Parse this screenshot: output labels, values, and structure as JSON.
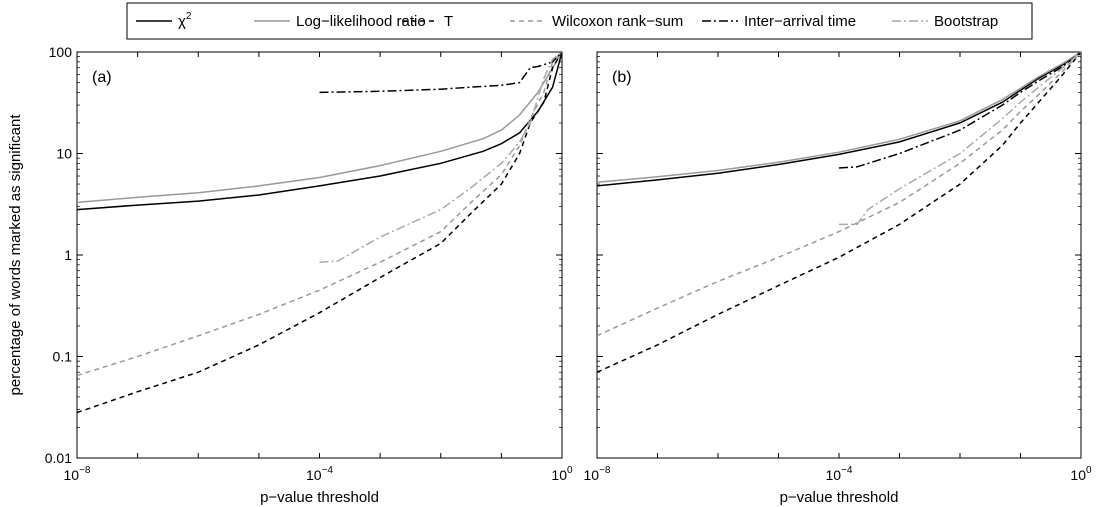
{
  "chart_data": {
    "type": "line",
    "scale": {
      "x": "log",
      "y": "log"
    },
    "legend": {
      "placement": "top-center",
      "entries": [
        {
          "key": "chi2",
          "label_base": "χ",
          "label_sup": "2"
        },
        {
          "key": "llr",
          "label": "Log−likelihood ratio"
        },
        {
          "key": "t",
          "label": "T"
        },
        {
          "key": "wilcoxon",
          "label": "Wilcoxon rank−sum"
        },
        {
          "key": "iat",
          "label": "Inter−arrival time"
        },
        {
          "key": "bootstrap",
          "label": "Bootstrap"
        }
      ]
    },
    "style": {
      "chi2": {
        "color": "#000000",
        "dash": ""
      },
      "llr": {
        "color": "#999999",
        "dash": ""
      },
      "t": {
        "color": "#000000",
        "dash": "5,4"
      },
      "wilcoxon": {
        "color": "#999999",
        "dash": "5,4"
      },
      "iat": {
        "color": "#000000",
        "dash": "9,3,2,3"
      },
      "bootstrap": {
        "color": "#aaaaaa",
        "dash": "9,3,2,3"
      }
    },
    "panels": [
      {
        "label": "(a)",
        "xlabel": "p−value threshold",
        "ylabel": "percentage of words marked as significant",
        "xlim": [
          1e-08,
          1
        ],
        "ylim": [
          0.01,
          100
        ],
        "series": [
          {
            "key": "chi2",
            "x": [
              1e-08,
              1e-07,
              1e-06,
              1e-05,
              0.0001,
              0.001,
              0.01,
              0.05,
              0.1,
              0.2,
              0.4,
              0.7,
              1
            ],
            "y": [
              2.8,
              3.1,
              3.4,
              3.9,
              4.8,
              6.0,
              8.0,
              10.5,
              12.5,
              16,
              26,
              45,
              100
            ]
          },
          {
            "key": "llr",
            "x": [
              1e-08,
              1e-07,
              1e-06,
              1e-05,
              0.0001,
              0.001,
              0.01,
              0.05,
              0.1,
              0.2,
              0.4,
              0.7,
              1
            ],
            "y": [
              3.3,
              3.7,
              4.1,
              4.8,
              5.8,
              7.6,
              10.5,
              14,
              17,
              24,
              40,
              70,
              100
            ]
          },
          {
            "key": "t",
            "x": [
              1e-08,
              1e-07,
              1e-06,
              1e-05,
              0.0001,
              0.001,
              0.01,
              0.03,
              0.1,
              0.2,
              0.3,
              0.5,
              0.7,
              1
            ],
            "y": [
              0.028,
              0.045,
              0.07,
              0.13,
              0.27,
              0.6,
              1.3,
              2.5,
              5,
              10,
              20,
              32,
              70,
              100
            ]
          },
          {
            "key": "wilcoxon",
            "x": [
              1e-08,
              1e-07,
              1e-06,
              1e-05,
              0.0001,
              0.001,
              0.01,
              0.03,
              0.1,
              0.2,
              0.3,
              0.5,
              0.7,
              1
            ],
            "y": [
              0.065,
              0.1,
              0.16,
              0.26,
              0.45,
              0.85,
              1.7,
              3.2,
              6.2,
              12,
              22,
              40,
              80,
              100
            ]
          },
          {
            "key": "iat",
            "x": [
              0.0001,
              0.001,
              0.01,
              0.03,
              0.1,
              0.2,
              0.3,
              0.4,
              0.5,
              0.7,
              1
            ],
            "y": [
              40,
              41,
              43,
              45,
              47,
              50,
              70,
              72,
              75,
              80,
              100
            ]
          },
          {
            "key": "bootstrap",
            "x": [
              0.0001,
              0.0002,
              0.001,
              0.01,
              0.03,
              0.1,
              0.2,
              0.3,
              0.5,
              0.7,
              1
            ],
            "y": [
              0.85,
              0.87,
              1.5,
              2.8,
              4.5,
              8,
              13,
              20,
              55,
              85,
              100
            ]
          }
        ]
      },
      {
        "label": "(b)",
        "xlabel": "p−value threshold",
        "ylabel": "",
        "xlim": [
          1e-08,
          1
        ],
        "ylim": [
          0.01,
          100
        ],
        "series": [
          {
            "key": "chi2",
            "x": [
              1e-08,
              1e-07,
              1e-06,
              1e-05,
              0.0001,
              0.001,
              0.01,
              0.05,
              0.1,
              0.2,
              0.5,
              1
            ],
            "y": [
              4.8,
              5.5,
              6.4,
              7.8,
              9.8,
              13,
              20,
              32,
              42,
              55,
              75,
              100
            ]
          },
          {
            "key": "llr",
            "x": [
              1e-08,
              1e-07,
              1e-06,
              1e-05,
              0.0001,
              0.001,
              0.01,
              0.05,
              0.1,
              0.2,
              0.5,
              1
            ],
            "y": [
              5.2,
              5.9,
              6.8,
              8.2,
              10.3,
              13.8,
              21,
              34,
              44,
              57,
              77,
              100
            ]
          },
          {
            "key": "t",
            "x": [
              1e-08,
              1e-07,
              1e-06,
              1e-05,
              0.0001,
              0.001,
              0.01,
              0.05,
              0.1,
              0.2,
              0.5,
              1
            ],
            "y": [
              0.07,
              0.13,
              0.26,
              0.5,
              0.95,
              2.0,
              5,
              12,
              20,
              32,
              60,
              100
            ]
          },
          {
            "key": "wilcoxon",
            "x": [
              1e-08,
              1e-07,
              1e-06,
              1e-05,
              0.0001,
              0.001,
              0.01,
              0.05,
              0.1,
              0.2,
              0.5,
              1
            ],
            "y": [
              0.16,
              0.3,
              0.55,
              0.95,
              1.7,
              3.3,
              8,
              17,
              26,
              38,
              65,
              100
            ]
          },
          {
            "key": "iat",
            "x": [
              0.0001,
              0.0002,
              0.001,
              0.01,
              0.05,
              0.1,
              0.2,
              0.5,
              1
            ],
            "y": [
              7.2,
              7.4,
              10,
              17,
              30,
              40,
              52,
              72,
              100
            ]
          },
          {
            "key": "bootstrap",
            "x": [
              0.0001,
              0.0002,
              0.0003,
              0.001,
              0.01,
              0.05,
              0.1,
              0.2,
              0.5,
              1
            ],
            "y": [
              2.0,
              2.0,
              2.8,
              4.5,
              10,
              22,
              32,
              45,
              70,
              100
            ]
          }
        ]
      }
    ],
    "ticks": {
      "x": [
        {
          "value": 1e-08,
          "base": "10",
          "exp": "−8"
        },
        {
          "value": 0.0001,
          "base": "10",
          "exp": "−4"
        },
        {
          "value": 1,
          "base": "10",
          "exp": "0"
        }
      ],
      "y": [
        {
          "value": 0.01,
          "label": "0.01"
        },
        {
          "value": 0.1,
          "label": "0.1"
        },
        {
          "value": 1,
          "label": "1"
        },
        {
          "value": 10,
          "label": "10"
        },
        {
          "value": 100,
          "label": "100"
        }
      ]
    }
  }
}
